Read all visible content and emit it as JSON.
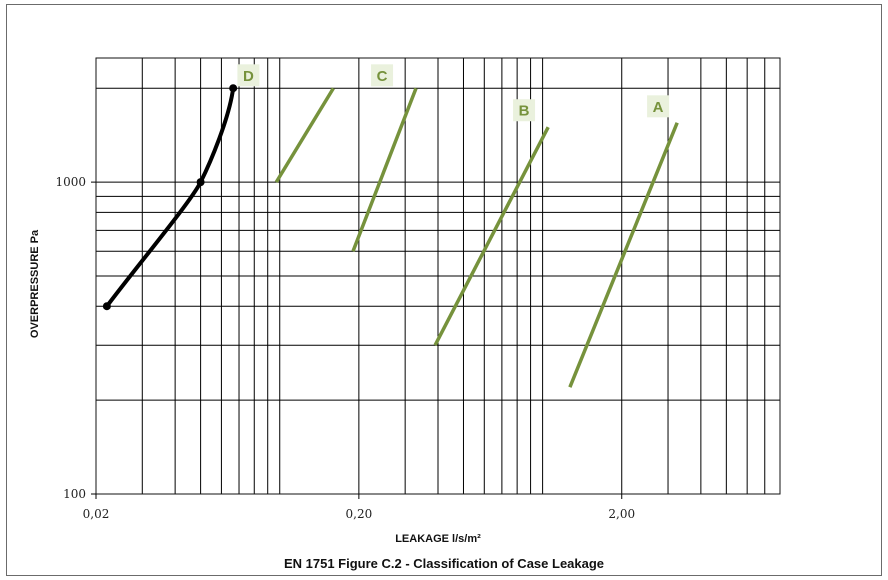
{
  "caption": "EN 1751 Figure C.2 - Classification of Case Leakage",
  "chart_data": {
    "type": "line",
    "xlabel": "LEAKAGE l/s/m²",
    "ylabel": "OVERPRESSURE Pa",
    "x_scale": "log",
    "y_scale": "log",
    "xlim": [
      0.02,
      8
    ],
    "ylim": [
      100,
      2500
    ],
    "x_ticks": [
      {
        "value": 0.02,
        "label": "0,02"
      },
      {
        "value": 0.2,
        "label": "0,20"
      },
      {
        "value": 2,
        "label": "2,00"
      }
    ],
    "y_ticks": [
      {
        "value": 100,
        "label": "100"
      },
      {
        "value": 1000,
        "label": "1000"
      }
    ],
    "grid": true,
    "series": [
      {
        "name": "D",
        "color": "#000000",
        "markers": true,
        "points": [
          [
            0.022,
            400
          ],
          [
            0.05,
            1000
          ],
          [
            0.0665,
            2000
          ]
        ]
      },
      {
        "name": "C",
        "color": "#76923c",
        "markers": false,
        "points": [
          [
            0.19,
            600
          ],
          [
            0.33,
            2000
          ]
        ]
      },
      {
        "name": "B",
        "color": "#76923c",
        "markers": false,
        "points": [
          [
            0.39,
            300
          ],
          [
            1.05,
            1500
          ]
        ]
      },
      {
        "name": "A",
        "color": "#76923c",
        "markers": false,
        "points": [
          [
            1.27,
            220
          ],
          [
            3.25,
            1550
          ]
        ]
      },
      {
        "name": "",
        "color": "#76923c",
        "markers": false,
        "points": [
          [
            0.097,
            1000
          ],
          [
            0.16,
            2000
          ]
        ]
      }
    ],
    "labels": [
      {
        "text": "D",
        "x": 0.076,
        "y": 2200
      },
      {
        "text": "C",
        "x": 0.245,
        "y": 2200
      },
      {
        "text": "B",
        "x": 0.85,
        "y": 1700
      },
      {
        "text": "A",
        "x": 2.75,
        "y": 1750
      }
    ],
    "label_box_color": "#eaf1dd",
    "label_text_color": "#76923c"
  }
}
